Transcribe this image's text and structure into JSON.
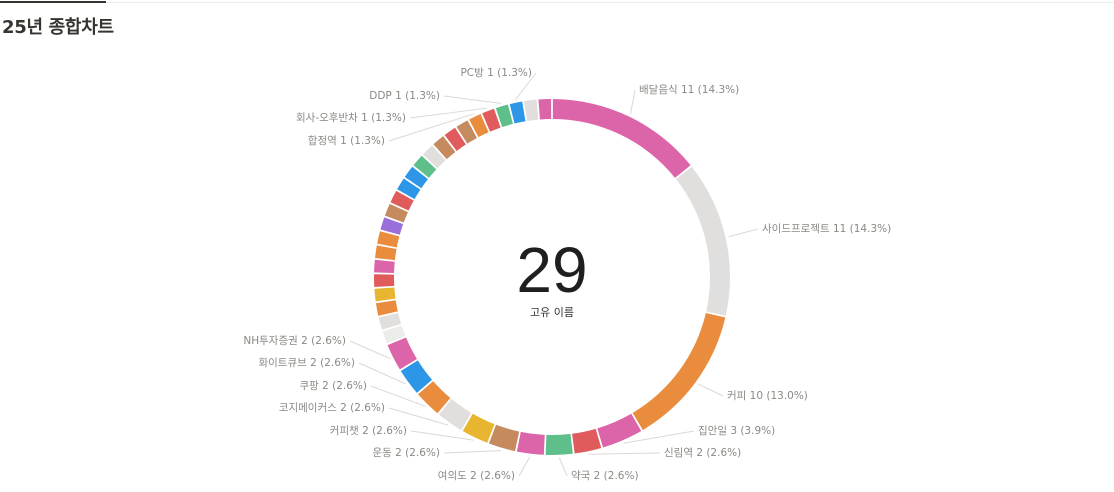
{
  "page": {
    "title": "25년 종합차트"
  },
  "chart_data": {
    "type": "pie",
    "center_value": "29",
    "center_label": "고유 이름",
    "labels": [
      "배달음식 11 (14.3%)",
      "사이드프로젝트 11 (14.3%)",
      "커피 10 (13.0%)",
      "집안일 3 (3.9%)",
      "신림역 2 (2.6%)",
      "약국 2 (2.6%)",
      "여의도 2 (2.6%)",
      "운동 2 (2.6%)",
      "커피챗 2 (2.6%)",
      "코지메이커스 2 (2.6%)",
      "쿠팡 2 (2.6%)",
      "화이트큐브 2 (2.6%)",
      "NH투자증권 2 (2.6%)",
      "합정역 1 (1.3%)",
      "회사-오후반차 1 (1.3%)",
      "DDP 1 (1.3%)",
      "PC방 1 (1.3%)"
    ],
    "slices": [
      {
        "name": "배달음식",
        "value": 11,
        "color": "#dc64a8"
      },
      {
        "name": "사이드프로젝트",
        "value": 11,
        "color": "#e0dfdd"
      },
      {
        "name": "커피",
        "value": 10,
        "color": "#ea8c3e"
      },
      {
        "name": "집안일",
        "value": 3,
        "color": "#dc64a8"
      },
      {
        "name": "신림역",
        "value": 2,
        "color": "#e05c5c"
      },
      {
        "name": "약국",
        "value": 2,
        "color": "#5fbf8a"
      },
      {
        "name": "여의도",
        "value": 2,
        "color": "#dc64a8"
      },
      {
        "name": "운동",
        "value": 2,
        "color": "#c58a5e"
      },
      {
        "name": "커피챗",
        "value": 2,
        "color": "#e8b530"
      },
      {
        "name": "코지메이커스",
        "value": 2,
        "color": "#e0dfdd"
      },
      {
        "name": "쿠팡",
        "value": 2,
        "color": "#ea8c3e"
      },
      {
        "name": "화이트큐브",
        "value": 2,
        "color": "#2e96e6"
      },
      {
        "name": "NH투자증권",
        "value": 2,
        "color": "#dc64a8"
      },
      {
        "name": "",
        "value": 1,
        "color": "#ececeb"
      },
      {
        "name": "",
        "value": 1,
        "color": "#e0dfdd"
      },
      {
        "name": "",
        "value": 1,
        "color": "#ea8c3e"
      },
      {
        "name": "",
        "value": 1,
        "color": "#e8b530"
      },
      {
        "name": "",
        "value": 1,
        "color": "#e05c5c"
      },
      {
        "name": "",
        "value": 1,
        "color": "#dc64a8"
      },
      {
        "name": "",
        "value": 1,
        "color": "#ea8c3e"
      },
      {
        "name": "",
        "value": 1,
        "color": "#ea8c3e"
      },
      {
        "name": "",
        "value": 1,
        "color": "#9b6fd9"
      },
      {
        "name": "",
        "value": 1,
        "color": "#c58a5e"
      },
      {
        "name": "",
        "value": 1,
        "color": "#e05c5c"
      },
      {
        "name": "",
        "value": 1,
        "color": "#2e96e6"
      },
      {
        "name": "",
        "value": 1,
        "color": "#2e96e6"
      },
      {
        "name": "",
        "value": 1,
        "color": "#5fbf8a"
      },
      {
        "name": "",
        "value": 1,
        "color": "#e0dfdd"
      },
      {
        "name": "",
        "value": 1,
        "color": "#c58a5e"
      },
      {
        "name": "",
        "value": 1,
        "color": "#e05c5c"
      },
      {
        "name": "",
        "value": 1,
        "color": "#c58a5e"
      },
      {
        "name": "합정역",
        "value": 1,
        "color": "#ea8c3e"
      },
      {
        "name": "회사-오후반차",
        "value": 1,
        "color": "#e05c5c"
      },
      {
        "name": "DDP",
        "value": 1,
        "color": "#5fbf8a"
      },
      {
        "name": "PC방",
        "value": 1,
        "color": "#2e96e6"
      },
      {
        "name": "",
        "value": 1,
        "color": "#e0dfdd"
      },
      {
        "name": "",
        "value": 1,
        "color": "#dc64a8"
      }
    ]
  }
}
